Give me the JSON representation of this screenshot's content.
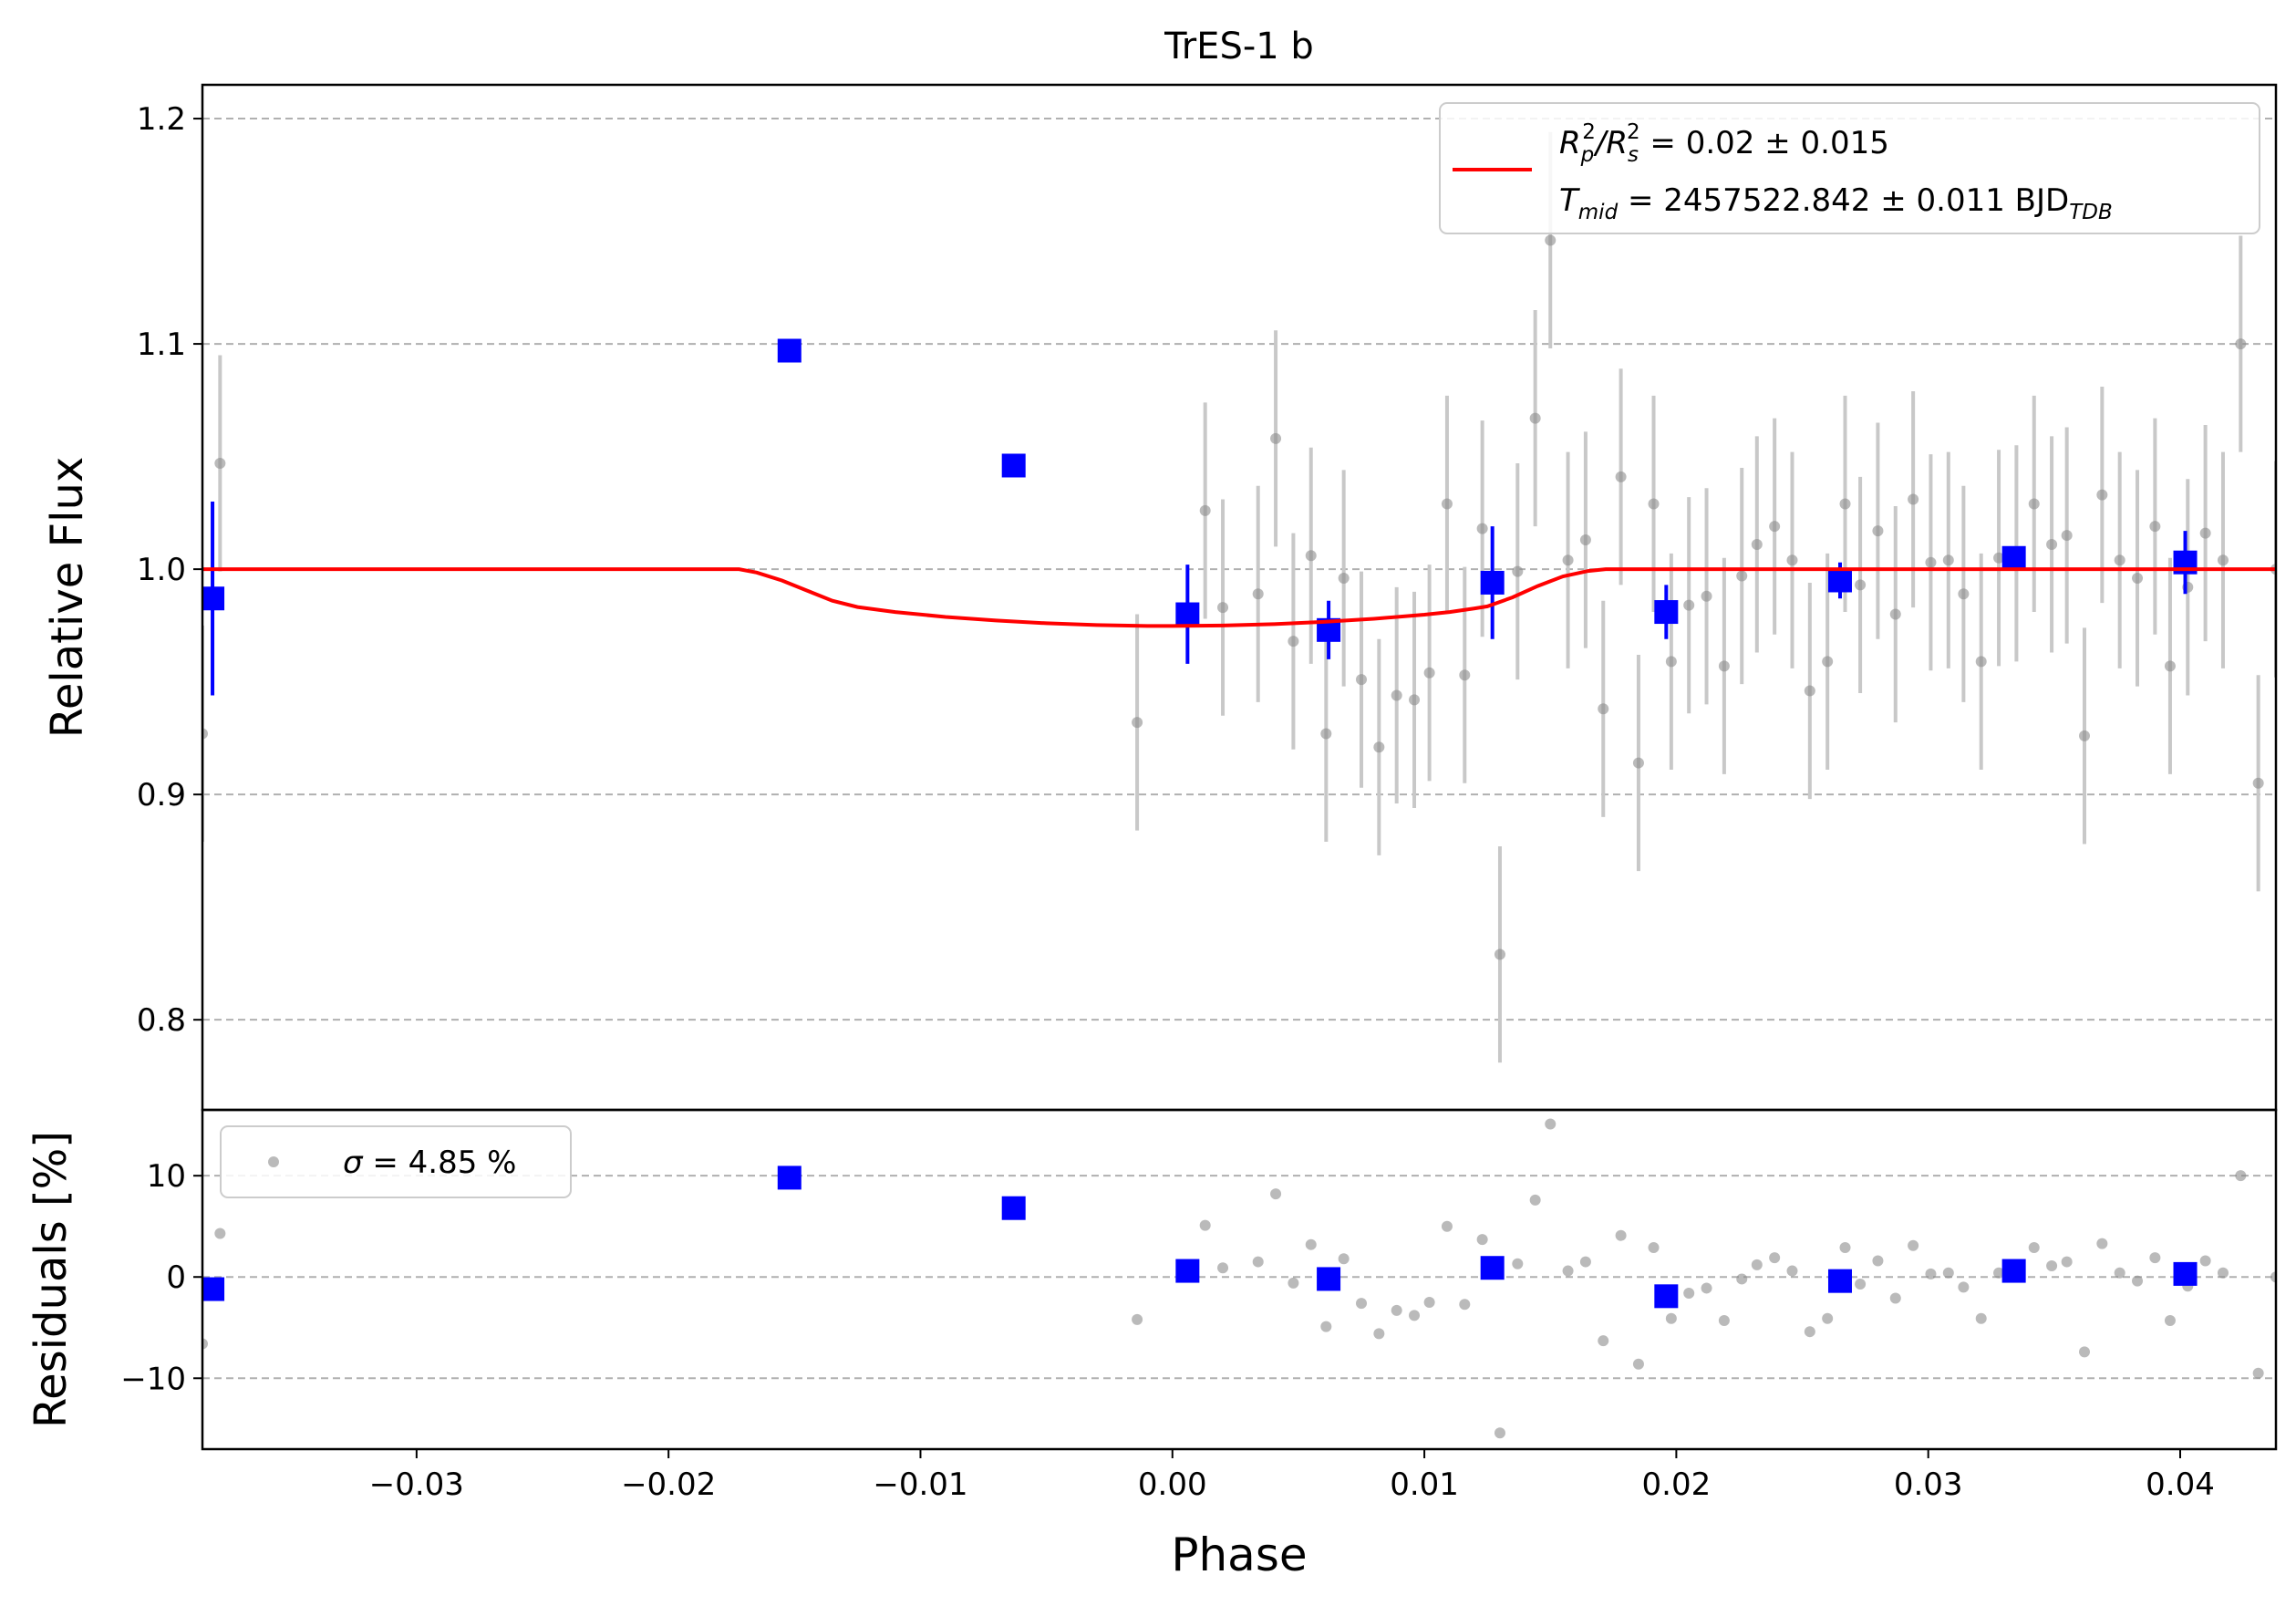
{
  "chart_data": [
    {
      "type": "scatter",
      "panel": "top",
      "title": "TrES-1 b",
      "xlabel": "",
      "ylabel": "Relative Flux",
      "xlim": [
        -0.0385,
        0.0438
      ],
      "ylim": [
        0.76,
        1.215
      ],
      "grid": "horizontal-dashed",
      "yticks": [
        0.8,
        0.9,
        1.0,
        1.1,
        1.2
      ],
      "ytick_labels": [
        "0.8",
        "0.9",
        "1.0",
        "1.1",
        "1.2"
      ],
      "legend": {
        "placement": "top-right",
        "line1": "R_p^2/R_s^2 = 0.02 ± 0.015",
        "line2": "T_mid = 2457522.842 ± 0.011 BJD_TDB",
        "line1_parts": {
          "r": "R",
          "p": "p",
          "slash": "/R",
          "s": "s",
          "sup": "2",
          "rest": " = 0.02 ± 0.015"
        },
        "line2_parts": {
          "t": "T",
          "mid": "mid",
          "rest": " = 2457522.842 ± 0.011 BJD",
          "tdb": "TDB"
        }
      },
      "model": {
        "name": "transit model",
        "color": "#ff0000",
        "x": [
          -0.0385,
          -0.0172,
          -0.0165,
          -0.0155,
          -0.0145,
          -0.0135,
          -0.0125,
          -0.011,
          -0.009,
          -0.007,
          -0.005,
          -0.003,
          -0.001,
          0.0,
          0.002,
          0.004,
          0.006,
          0.008,
          0.01,
          0.011,
          0.012,
          0.0125,
          0.0135,
          0.0145,
          0.0155,
          0.0165,
          0.0172,
          0.0438
        ],
        "y": [
          1.0,
          1.0,
          0.9985,
          0.995,
          0.9905,
          0.986,
          0.9832,
          0.981,
          0.9788,
          0.9772,
          0.976,
          0.9752,
          0.9748,
          0.9748,
          0.975,
          0.9756,
          0.9766,
          0.978,
          0.9798,
          0.981,
          0.9826,
          0.9835,
          0.9875,
          0.9925,
          0.9968,
          0.9992,
          1.0,
          1.0
        ]
      },
      "series": [
        {
          "name": "unbinned",
          "color": "#8c8c8c",
          "x": [
            -0.0385,
            -0.0378,
            -0.0014,
            0.0013,
            0.002,
            0.0034,
            0.0041,
            0.0048,
            0.0055,
            0.0061,
            0.0068,
            0.0075,
            0.0082,
            0.0089,
            0.0096,
            0.0102,
            0.0109,
            0.0116,
            0.0123,
            0.013,
            0.0137,
            0.0144,
            0.015,
            0.0157,
            0.0164,
            0.0171,
            0.0178,
            0.0185,
            0.0191,
            0.0198,
            0.0205,
            0.0212,
            0.0219,
            0.0226,
            0.0232,
            0.0239,
            0.0246,
            0.0253,
            0.026,
            0.0267,
            0.0273,
            0.028,
            0.0287,
            0.0294,
            0.0301,
            0.0308,
            0.0314,
            0.0321,
            0.0328,
            0.0335,
            0.0342,
            0.0349,
            0.0355,
            0.0362,
            0.0369,
            0.0376,
            0.0383,
            0.039,
            0.0396,
            0.0403,
            0.041,
            0.0417,
            0.0424,
            0.0431,
            0.0438
          ],
          "y": [
            0.927,
            1.047,
            0.932,
            1.026,
            0.983,
            0.989,
            1.058,
            0.968,
            1.006,
            0.927,
            0.996,
            0.951,
            0.921,
            0.944,
            0.942,
            0.954,
            1.029,
            0.953,
            1.018,
            0.829,
            0.999,
            1.067,
            1.146,
            1.004,
            1.013,
            0.938,
            1.041,
            0.914,
            1.029,
            0.959,
            0.984,
            0.988,
            0.957,
            0.997,
            1.011,
            1.019,
            1.004,
            0.946,
            0.959,
            1.029,
            0.993,
            1.017,
            0.98,
            1.031,
            1.003,
            1.004,
            0.989,
            0.959,
            1.005,
            1.007,
            1.029,
            1.011,
            1.015,
            0.926,
            1.033,
            1.004,
            0.996,
            1.019,
            0.957,
            0.992,
            1.016,
            1.004,
            1.1,
            0.905,
            1.0
          ],
          "yerr": [
            0.048,
            0.048,
            0.048,
            0.048,
            0.048,
            0.048,
            0.048,
            0.048,
            0.048,
            0.048,
            0.048,
            0.048,
            0.048,
            0.048,
            0.048,
            0.048,
            0.048,
            0.048,
            0.048,
            0.048,
            0.048,
            0.048,
            0.048,
            0.048,
            0.048,
            0.048,
            0.048,
            0.048,
            0.048,
            0.048,
            0.048,
            0.048,
            0.048,
            0.048,
            0.048,
            0.048,
            0.048,
            0.048,
            0.048,
            0.048,
            0.048,
            0.048,
            0.048,
            0.048,
            0.048,
            0.048,
            0.048,
            0.048,
            0.048,
            0.048,
            0.048,
            0.048,
            0.048,
            0.048,
            0.048,
            0.048,
            0.048,
            0.048,
            0.048,
            0.048,
            0.048,
            0.048,
            0.048,
            0.048,
            0.048
          ]
        },
        {
          "name": "binned",
          "color": "#0000ff",
          "x": [
            -0.0381,
            -0.0152,
            -0.0063,
            0.0006,
            0.0062,
            0.0127,
            0.0196,
            0.0265,
            0.0334,
            0.0402
          ],
          "y": [
            0.987,
            1.097,
            1.046,
            0.98,
            0.973,
            0.994,
            0.981,
            0.995,
            1.005,
            1.003
          ],
          "yerr": [
            0.043,
            0.0,
            0.0,
            0.022,
            0.013,
            0.025,
            0.012,
            0.008,
            0.004,
            0.014
          ]
        }
      ]
    },
    {
      "type": "scatter",
      "panel": "bottom",
      "title": "",
      "xlabel": "Phase",
      "ylabel": "Residuals [%]",
      "xlim": [
        -0.0385,
        0.0438
      ],
      "ylim": [
        -17,
        16.5
      ],
      "grid": "horizontal-dashed",
      "xticks": [
        -0.03,
        -0.02,
        -0.01,
        0.0,
        0.01,
        0.02,
        0.03,
        0.04
      ],
      "xtick_labels": [
        "−0.03",
        "−0.02",
        "−0.01",
        "0.00",
        "0.01",
        "0.02",
        "0.03",
        "0.04"
      ],
      "yticks": [
        -10,
        0,
        10
      ],
      "ytick_labels": [
        "−10",
        "0",
        "10"
      ],
      "legend": {
        "placement": "top-left",
        "sigma": "σ",
        "rest": " = 4.85 %"
      },
      "series": [
        {
          "name": "unbinned residuals",
          "color": "#8c8c8c",
          "x": [
            -0.0385,
            -0.0378,
            -0.0014,
            0.0013,
            0.002,
            0.0034,
            0.0041,
            0.0048,
            0.0055,
            0.0061,
            0.0068,
            0.0075,
            0.0082,
            0.0089,
            0.0096,
            0.0102,
            0.0109,
            0.0116,
            0.0123,
            0.013,
            0.0137,
            0.0144,
            0.015,
            0.0157,
            0.0164,
            0.0171,
            0.0178,
            0.0185,
            0.0191,
            0.0198,
            0.0205,
            0.0212,
            0.0219,
            0.0226,
            0.0232,
            0.0239,
            0.0246,
            0.0253,
            0.026,
            0.0267,
            0.0273,
            0.028,
            0.0287,
            0.0294,
            0.0301,
            0.0308,
            0.0314,
            0.0321,
            0.0328,
            0.0335,
            0.0342,
            0.0349,
            0.0355,
            0.0362,
            0.0369,
            0.0376,
            0.0383,
            0.039,
            0.0396,
            0.0403,
            0.041,
            0.0417,
            0.0424,
            0.0431,
            0.0438
          ],
          "y": [
            -6.6,
            4.3,
            -4.2,
            5.1,
            0.9,
            1.5,
            8.2,
            -0.6,
            3.2,
            -4.9,
            1.8,
            -2.6,
            -5.6,
            -3.3,
            -3.8,
            -2.5,
            5.0,
            -2.7,
            3.7,
            -15.4,
            1.3,
            7.6,
            15.1,
            0.6,
            1.5,
            -6.3,
            4.1,
            -8.6,
            2.9,
            -4.1,
            -1.6,
            -1.1,
            -4.3,
            -0.2,
            1.2,
            1.9,
            0.6,
            -5.4,
            -4.1,
            2.9,
            -0.7,
            1.6,
            -2.1,
            3.1,
            0.3,
            0.4,
            -1.0,
            -4.1,
            0.4,
            0.7,
            2.9,
            1.1,
            1.5,
            -7.4,
            3.3,
            0.4,
            -0.4,
            1.9,
            -4.3,
            -0.9,
            1.6,
            0.4,
            10.0,
            -9.5,
            0.0
          ]
        },
        {
          "name": "binned residuals",
          "color": "#0000ff",
          "x": [
            -0.0381,
            -0.0152,
            -0.0063,
            0.0006,
            0.0062,
            0.0127,
            0.0196,
            0.0265,
            0.0334,
            0.0402
          ],
          "y": [
            -1.2,
            9.8,
            6.8,
            0.6,
            -0.2,
            0.9,
            -1.9,
            -0.4,
            0.6,
            0.3
          ]
        }
      ]
    }
  ]
}
